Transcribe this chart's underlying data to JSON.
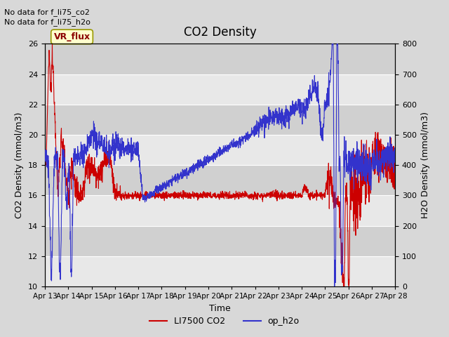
{
  "title": "CO2 Density",
  "xlabel": "Time",
  "ylabel_left": "CO2 Density (mmol/m3)",
  "ylabel_right": "H2O Density (mmol/m3)",
  "top_text_1": "No data for f_li75_co2",
  "top_text_2": "No data for f_li75_h2o",
  "vr_flux_label": "VR_flux",
  "legend_entries": [
    "LI7500 CO2",
    "op_h2o"
  ],
  "legend_colors": [
    "#cc0000",
    "#3333cc"
  ],
  "ylim_left": [
    10,
    26
  ],
  "ylim_right": [
    0,
    800
  ],
  "yticks_left": [
    10,
    12,
    14,
    16,
    18,
    20,
    22,
    24,
    26
  ],
  "yticks_right": [
    0,
    100,
    200,
    300,
    400,
    500,
    600,
    700,
    800
  ],
  "xtick_labels": [
    "Apr 13",
    "Apr 14",
    "Apr 15",
    "Apr 16",
    "Apr 17",
    "Apr 18",
    "Apr 19",
    "Apr 20",
    "Apr 21",
    "Apr 22",
    "Apr 23",
    "Apr 24",
    "Apr 25",
    "Apr 26",
    "Apr 27",
    "Apr 28"
  ],
  "fig_bg": "#d8d8d8",
  "plot_bg_light": "#e8e8e8",
  "plot_bg_dark": "#d0d0d0",
  "grid_color": "#ffffff",
  "red_color": "#cc0000",
  "blue_color": "#3333cc"
}
